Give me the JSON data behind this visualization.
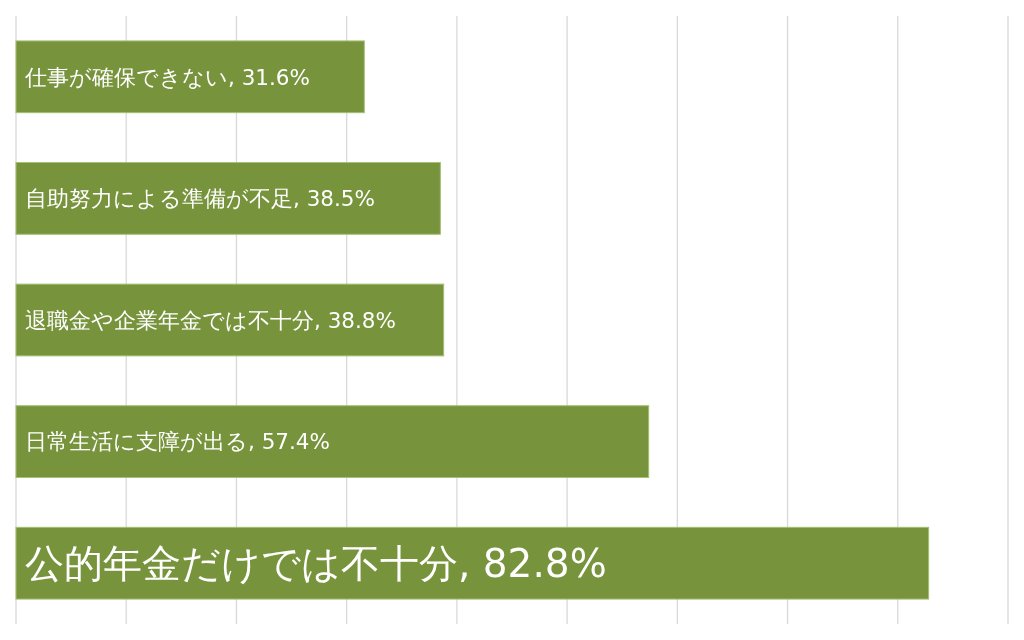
{
  "chart_data": {
    "type": "bar",
    "orientation": "horizontal",
    "categories": [
      null,
      null,
      null,
      null,
      null
    ],
    "values": [
      31.6,
      38.5,
      38.8,
      57.4,
      82.8
    ],
    "value_labels": [
      "仕事が確保できない, 31.6%",
      "自助努力による準備が不足, 38.5%",
      "退職金や企業年金では不十分, 38.8%",
      "日常生活に支障が出る, 57.4%",
      "公的年金だけでは不十分, 82.8%"
    ],
    "color": "#77933c",
    "xticks": [
      {
        "value": 0,
        "label": null
      },
      {
        "value": 10,
        "label": null
      },
      {
        "value": 20,
        "label": null
      },
      {
        "value": 30,
        "label": null
      },
      {
        "value": 40,
        "label": null
      },
      {
        "value": 50,
        "label": null
      },
      {
        "value": 60,
        "label": null
      },
      {
        "value": 70,
        "label": null
      },
      {
        "value": 80,
        "label": null
      },
      {
        "value": 90,
        "label": null
      }
    ],
    "grid": "x"
  }
}
